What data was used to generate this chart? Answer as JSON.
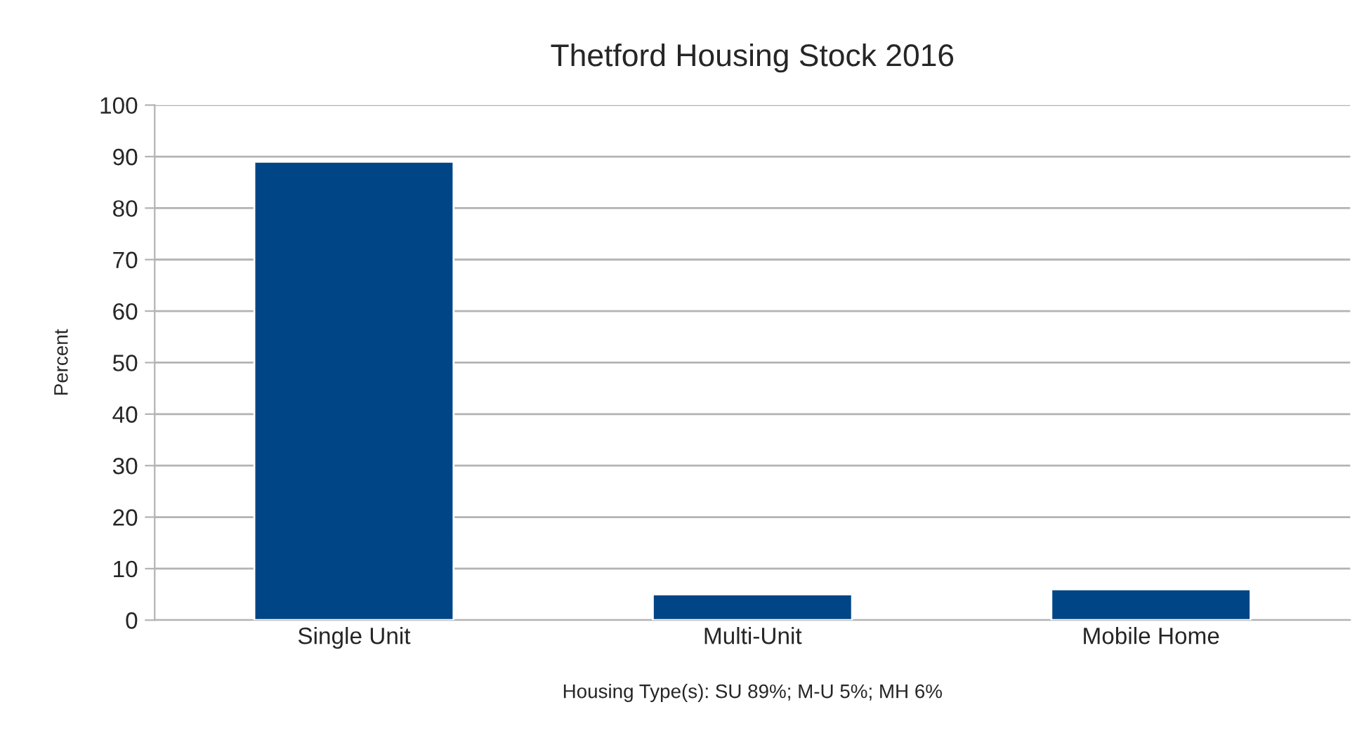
{
  "chart_data": {
    "type": "bar",
    "title": "Thetford Housing Stock 2016",
    "categories": [
      "Single Unit",
      "Multi-Unit",
      "Mobile Home"
    ],
    "values": [
      89,
      5,
      6
    ],
    "color": "#004586",
    "xlabel": "Housing Type(s): SU 89%; M-U 5%; MH 6%",
    "ylabel": "Percent",
    "ylim": [
      0,
      100
    ],
    "yticks": [
      0,
      10,
      20,
      30,
      40,
      50,
      60,
      70,
      80,
      90,
      100
    ],
    "grid": "y",
    "legend": false
  }
}
